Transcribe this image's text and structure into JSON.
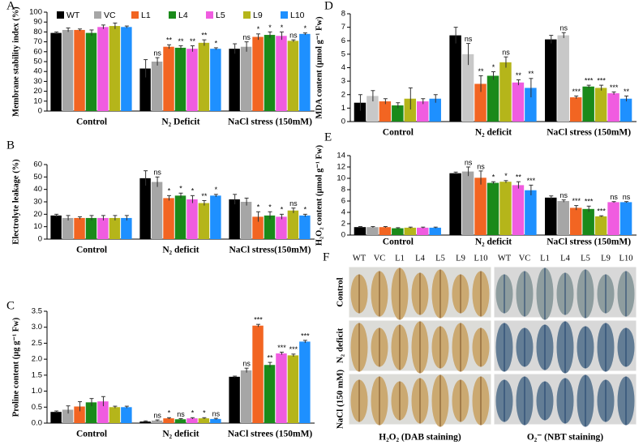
{
  "chart_data": [
    {
      "type": "bar",
      "panel_label": "A",
      "ylabel": "Membrane stability index (%)",
      "categories": [
        "Control",
        "N₂ Deficit",
        "NaCl stress (150mM)"
      ],
      "ylim": [
        0,
        100
      ],
      "yticks": [
        0,
        10,
        20,
        30,
        40,
        50,
        60,
        70,
        80,
        90,
        100
      ],
      "series": [
        {
          "name": "WT",
          "color": "#000000",
          "values": [
            79,
            43,
            63
          ],
          "errors": [
            1,
            9,
            5
          ]
        },
        {
          "name": "VC",
          "color": "#a6a6a6",
          "values": [
            82,
            50,
            65
          ],
          "errors": [
            2,
            4,
            5
          ],
          "sig": [
            null,
            "ns",
            "ns"
          ]
        },
        {
          "name": "L1",
          "color": "#f26522",
          "values": [
            82,
            65,
            75
          ],
          "errors": [
            1,
            2,
            3
          ],
          "sig": [
            null,
            "**",
            "*"
          ]
        },
        {
          "name": "L4",
          "color": "#1a8a1a",
          "values": [
            79,
            64,
            77
          ],
          "errors": [
            3,
            2,
            3
          ],
          "sig": [
            null,
            "**",
            "*"
          ]
        },
        {
          "name": "L5",
          "color": "#f05ce0",
          "values": [
            85,
            63,
            76
          ],
          "errors": [
            2,
            3,
            4
          ],
          "sig": [
            null,
            "**",
            "*"
          ]
        },
        {
          "name": "L9",
          "color": "#b5b51a",
          "values": [
            86,
            69,
            71
          ],
          "errors": [
            3,
            3,
            1
          ],
          "sig": [
            null,
            "**",
            "ns"
          ]
        },
        {
          "name": "L10",
          "color": "#1e90ff",
          "values": [
            85,
            63,
            78
          ],
          "errors": [
            1,
            1,
            1
          ],
          "sig": [
            null,
            "*",
            "*"
          ]
        }
      ]
    },
    {
      "type": "bar",
      "panel_label": "B",
      "ylabel": "Electrolyte leakage (%)",
      "categories": [
        "Control",
        "N₂ deficit",
        "NaCl stress(150mM)"
      ],
      "ylim": [
        0,
        60
      ],
      "yticks": [
        0,
        10,
        20,
        30,
        40,
        50,
        60
      ],
      "series": [
        {
          "color": "#000000",
          "values": [
            19,
            49,
            32
          ],
          "errors": [
            1,
            6,
            4
          ]
        },
        {
          "color": "#a6a6a6",
          "values": [
            17,
            46,
            30
          ],
          "errors": [
            2,
            4,
            3
          ],
          "sig": [
            null,
            "ns",
            null
          ]
        },
        {
          "color": "#f26522",
          "values": [
            17,
            33,
            18
          ],
          "errors": [
            1,
            2,
            4
          ],
          "sig": [
            null,
            "*",
            "*"
          ]
        },
        {
          "color": "#1a8a1a",
          "values": [
            17,
            35,
            19
          ],
          "errors": [
            2,
            2,
            3
          ],
          "sig": [
            null,
            "*",
            "*"
          ]
        },
        {
          "color": "#f05ce0",
          "values": [
            17,
            32,
            18
          ],
          "errors": [
            2,
            3,
            2
          ],
          "sig": [
            null,
            "*",
            "*"
          ]
        },
        {
          "color": "#b5b51a",
          "values": [
            17,
            29,
            23
          ],
          "errors": [
            2,
            2,
            2
          ],
          "sig": [
            null,
            "**",
            "ns"
          ]
        },
        {
          "color": "#1e90ff",
          "values": [
            17,
            35,
            19
          ],
          "errors": [
            2,
            1,
            1
          ],
          "sig": [
            null,
            "*",
            "*"
          ]
        }
      ]
    },
    {
      "type": "bar",
      "panel_label": "C",
      "ylabel": "Proline content (µg g⁻¹ Fw)",
      "categories": [
        "Control",
        "N₂ deficit",
        "NaCl strees (150mM)"
      ],
      "ylim": [
        0,
        3.5
      ],
      "yticks": [
        {
          "value": 0,
          "label": "0.0"
        },
        0.5,
        {
          "value": 1,
          "label": "1.0"
        },
        1.5,
        {
          "value": 2,
          "label": "2.0"
        },
        2.5,
        {
          "value": 3,
          "label": "3.0"
        },
        3.5
      ],
      "series": [
        {
          "color": "#000000",
          "values": [
            0.35,
            0.05,
            1.45
          ],
          "errors": [
            0.03,
            0.02,
            0.02
          ]
        },
        {
          "color": "#a6a6a6",
          "values": [
            0.42,
            0.08,
            1.65
          ],
          "errors": [
            0.12,
            0.02,
            0.07
          ],
          "sig": [
            null,
            "ns",
            "ns"
          ]
        },
        {
          "color": "#f26522",
          "values": [
            0.52,
            0.15,
            3.05
          ],
          "errors": [
            0.15,
            0.02,
            0.04
          ],
          "sig": [
            null,
            "*",
            "***"
          ]
        },
        {
          "color": "#1a8a1a",
          "values": [
            0.65,
            0.12,
            1.82
          ],
          "errors": [
            0.12,
            0.02,
            0.08
          ],
          "sig": [
            null,
            "ns",
            "**"
          ]
        },
        {
          "color": "#f05ce0",
          "values": [
            0.68,
            0.15,
            2.18
          ],
          "errors": [
            0.15,
            0.02,
            0.04
          ],
          "sig": [
            null,
            "*",
            "***"
          ]
        },
        {
          "color": "#b5b51a",
          "values": [
            0.5,
            0.15,
            2.12
          ],
          "errors": [
            0.03,
            0.02,
            0.04
          ],
          "sig": [
            null,
            "*",
            "***"
          ]
        },
        {
          "color": "#1e90ff",
          "values": [
            0.5,
            0.13,
            2.55
          ],
          "errors": [
            0.03,
            0.02,
            0.04
          ],
          "sig": [
            null,
            "ns",
            "***"
          ]
        }
      ]
    },
    {
      "type": "bar",
      "panel_label": "D",
      "ylabel": "MDA content (µmol g⁻¹ Fw)",
      "categories": [
        "Control",
        "N₂ deficit",
        "NaCl stress (150mM)"
      ],
      "ylim": [
        0,
        8
      ],
      "yticks": [
        0,
        1,
        2,
        3,
        4,
        5,
        6,
        7,
        8
      ],
      "series": [
        {
          "color": "#000000",
          "values": [
            1.4,
            6.4,
            6.1
          ],
          "errors": [
            0.6,
            0.6,
            0.3
          ]
        },
        {
          "color": "#c8c8c8",
          "values": [
            1.9,
            5.0,
            6.4
          ],
          "errors": [
            0.4,
            0.8,
            0.2
          ],
          "sig": [
            null,
            "ns",
            "ns"
          ]
        },
        {
          "color": "#f26522",
          "values": [
            1.5,
            2.8,
            1.8
          ],
          "errors": [
            0.2,
            0.6,
            0.1
          ],
          "sig": [
            null,
            "**",
            "***"
          ]
        },
        {
          "color": "#1a8a1a",
          "values": [
            1.2,
            3.4,
            2.6
          ],
          "errors": [
            0.2,
            0.3,
            0.1
          ],
          "sig": [
            null,
            "*",
            "***"
          ]
        },
        {
          "color": "#b5b51a",
          "values": [
            1.7,
            4.4,
            2.5
          ],
          "errors": [
            0.8,
            0.4,
            0.2
          ],
          "sig": [
            null,
            "ns",
            "***"
          ]
        },
        {
          "color": "#f05ce0",
          "values": [
            1.5,
            2.9,
            2.1
          ],
          "errors": [
            0.2,
            0.2,
            0.1
          ],
          "sig": [
            null,
            "**",
            "***"
          ]
        },
        {
          "color": "#1e90ff",
          "values": [
            1.7,
            2.5,
            1.7
          ],
          "errors": [
            0.3,
            0.7,
            0.2
          ],
          "sig": [
            null,
            "**",
            "**"
          ]
        }
      ]
    },
    {
      "type": "bar",
      "panel_label": "E",
      "ylabel": "H₂O₂ content (µmol g⁻¹ Fw)",
      "categories": [
        "Control",
        "N₂ deficit",
        "NaCl stress (150mM)"
      ],
      "ylim": [
        0,
        14
      ],
      "yticks": [
        0,
        2,
        4,
        6,
        8,
        10,
        12,
        14
      ],
      "series": [
        {
          "color": "#000000",
          "values": [
            1.4,
            10.9,
            6.6
          ],
          "errors": [
            0.1,
            0.2,
            0.3
          ]
        },
        {
          "color": "#a6a6a6",
          "values": [
            1.4,
            11.2,
            6.0
          ],
          "errors": [
            0.1,
            0.8,
            0.2
          ],
          "sig": [
            null,
            "ns",
            "ns"
          ]
        },
        {
          "color": "#f26522",
          "values": [
            1.4,
            10.1,
            4.8
          ],
          "errors": [
            0.1,
            1.2,
            0.4
          ],
          "sig": [
            null,
            "ns",
            "***"
          ]
        },
        {
          "color": "#1a8a1a",
          "values": [
            1.2,
            9.2,
            4.6
          ],
          "errors": [
            0.1,
            0.2,
            0.5
          ],
          "sig": [
            null,
            "*",
            "***"
          ]
        },
        {
          "color": "#b5b51a",
          "values": [
            1.3,
            9.4,
            3.3
          ],
          "errors": [
            0.1,
            0.2,
            0.1
          ],
          "sig": [
            null,
            "*",
            "***"
          ]
        },
        {
          "color": "#f05ce0",
          "values": [
            1.3,
            8.8,
            5.8
          ],
          "errors": [
            0.1,
            0.6,
            0.1
          ],
          "sig": [
            null,
            "**",
            "ns"
          ]
        },
        {
          "color": "#1e90ff",
          "values": [
            1.3,
            7.9,
            5.8
          ],
          "errors": [
            0.1,
            0.9,
            0.1
          ],
          "sig": [
            null,
            "***",
            "ns"
          ]
        }
      ]
    }
  ],
  "panel_f": {
    "panel_label": "F",
    "column_labels": [
      "WT",
      "VC",
      "L1",
      "L4",
      "L5",
      "L9",
      "L10",
      "WT",
      "VC",
      "L1",
      "L4",
      "L5",
      "L9",
      "L10"
    ],
    "row_labels": [
      "Control",
      "N₂ deficit",
      "NaCl (150 mM)"
    ],
    "captions": [
      "H₂O₂ (DAB staining)",
      "O₂⁻ (NBT staining)"
    ]
  }
}
